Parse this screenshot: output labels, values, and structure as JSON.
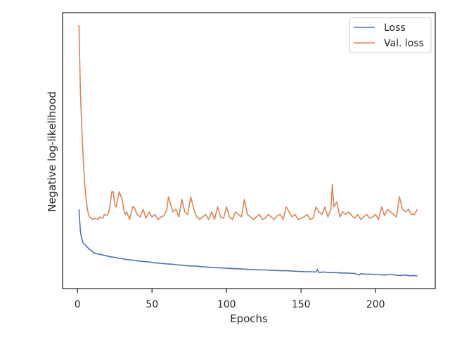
{
  "chart_data": {
    "type": "line",
    "title": "",
    "xlabel": "Epochs",
    "ylabel": "Negative log-likelihood",
    "xlim": [
      -10,
      240
    ],
    "xticks": [
      0,
      50,
      100,
      150,
      200
    ],
    "x_tick_labels": [
      "0",
      "50",
      "100",
      "150",
      "200"
    ],
    "y_tick_labels_shown": false,
    "grid": false,
    "legend": "top-right",
    "series": [
      {
        "name": "Loss",
        "color": "#4c72b0",
        "x": [
          1,
          2,
          3,
          4,
          5,
          6,
          7,
          8,
          9,
          10,
          12,
          15,
          18,
          20,
          22,
          25,
          28,
          30,
          32,
          35,
          38,
          40,
          42,
          45,
          48,
          50,
          52,
          55,
          58,
          60,
          63,
          66,
          70,
          73,
          76,
          80,
          83,
          86,
          90,
          93,
          96,
          100,
          103,
          106,
          110,
          113,
          116,
          120,
          123,
          126,
          130,
          133,
          136,
          140,
          143,
          146,
          150,
          153,
          156,
          160,
          161,
          162,
          165,
          168,
          170,
          173,
          176,
          180,
          183,
          186,
          189,
          190,
          192,
          195,
          198,
          200,
          203,
          206,
          210,
          213,
          216,
          220,
          223,
          226,
          228
        ],
        "y": [
          3.2,
          2.3,
          2.0,
          1.85,
          1.8,
          1.75,
          1.68,
          1.62,
          1.58,
          1.52,
          1.45,
          1.42,
          1.38,
          1.35,
          1.32,
          1.3,
          1.26,
          1.25,
          1.22,
          1.2,
          1.18,
          1.16,
          1.15,
          1.13,
          1.12,
          1.1,
          1.08,
          1.07,
          1.05,
          1.04,
          1.03,
          1.01,
          0.99,
          0.97,
          0.96,
          0.95,
          0.93,
          0.92,
          0.9,
          0.89,
          0.88,
          0.87,
          0.86,
          0.85,
          0.84,
          0.83,
          0.82,
          0.81,
          0.8,
          0.8,
          0.79,
          0.78,
          0.77,
          0.77,
          0.76,
          0.75,
          0.74,
          0.73,
          0.73,
          0.72,
          0.82,
          0.7,
          0.72,
          0.7,
          0.69,
          0.7,
          0.68,
          0.68,
          0.67,
          0.66,
          0.6,
          0.65,
          0.64,
          0.63,
          0.63,
          0.62,
          0.61,
          0.6,
          0.62,
          0.6,
          0.58,
          0.6,
          0.57,
          0.58,
          0.56
        ]
      },
      {
        "name": "Val. loss",
        "color": "#dd8452",
        "x": [
          1,
          2,
          3,
          4,
          5,
          6,
          7,
          8,
          10,
          12,
          14,
          15,
          17,
          18,
          20,
          21,
          22,
          23,
          24,
          25,
          26,
          28,
          30,
          31,
          32,
          33,
          35,
          37,
          38,
          40,
          42,
          44,
          46,
          48,
          50,
          52,
          54,
          56,
          58,
          60,
          61,
          62,
          64,
          66,
          68,
          70,
          72,
          74,
          76,
          78,
          80,
          82,
          84,
          86,
          88,
          90,
          92,
          94,
          96,
          98,
          100,
          102,
          104,
          106,
          108,
          110,
          112,
          114,
          116,
          118,
          120,
          122,
          124,
          126,
          128,
          130,
          132,
          134,
          136,
          138,
          140,
          142,
          144,
          146,
          148,
          150,
          152,
          154,
          156,
          158,
          160,
          162,
          164,
          166,
          168,
          170,
          171,
          172,
          174,
          176,
          178,
          180,
          182,
          184,
          186,
          188,
          190,
          192,
          194,
          196,
          198,
          200,
          202,
          204,
          206,
          208,
          210,
          212,
          214,
          216,
          218,
          220,
          222,
          224,
          226,
          228
        ],
        "y": [
          10.5,
          7.8,
          6.3,
          5.0,
          4.1,
          3.5,
          3.1,
          2.9,
          2.8,
          2.85,
          2.8,
          2.9,
          2.85,
          3.0,
          2.95,
          3.1,
          3.4,
          3.9,
          3.9,
          3.4,
          3.3,
          3.9,
          3.6,
          3.2,
          3.0,
          3.1,
          2.8,
          3.3,
          3.3,
          3.0,
          2.9,
          3.2,
          2.85,
          3.1,
          2.9,
          3.0,
          2.8,
          2.9,
          2.95,
          3.2,
          3.7,
          3.5,
          3.1,
          3.2,
          2.9,
          3.6,
          3.1,
          3.0,
          3.7,
          3.2,
          2.9,
          2.8,
          2.9,
          3.0,
          2.8,
          3.1,
          2.8,
          3.3,
          2.9,
          2.85,
          3.3,
          2.9,
          2.8,
          3.1,
          3.0,
          2.9,
          3.6,
          3.0,
          2.9,
          2.8,
          2.9,
          3.0,
          2.8,
          2.85,
          3.0,
          2.9,
          2.8,
          2.95,
          3.0,
          2.8,
          3.3,
          3.1,
          2.9,
          3.0,
          2.8,
          2.85,
          2.9,
          3.0,
          2.8,
          2.85,
          3.3,
          3.1,
          3.0,
          3.3,
          2.9,
          3.2,
          4.2,
          3.3,
          3.5,
          2.9,
          3.1,
          3.0,
          3.1,
          2.95,
          2.85,
          3.0,
          2.8,
          2.9,
          3.0,
          2.85,
          2.9,
          3.0,
          2.8,
          3.3,
          2.95,
          3.2,
          3.1,
          3.0,
          2.9,
          3.7,
          3.2,
          3.1,
          3.2,
          3.0,
          3.0,
          3.2
        ]
      }
    ]
  }
}
